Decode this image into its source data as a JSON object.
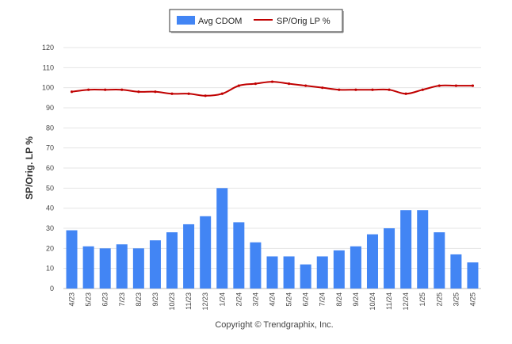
{
  "chart_data": {
    "type": "bar",
    "categories": [
      "4/23",
      "5/23",
      "6/23",
      "7/23",
      "8/23",
      "9/23",
      "10/23",
      "11/23",
      "12/23",
      "1/24",
      "2/24",
      "3/24",
      "4/24",
      "5/24",
      "6/24",
      "7/24",
      "8/24",
      "9/24",
      "10/24",
      "11/24",
      "12/24",
      "1/25",
      "2/25",
      "3/25",
      "4/25"
    ],
    "series": [
      {
        "name": "Avg CDOM",
        "type": "bar",
        "color": "#4285f4",
        "values": [
          29,
          21,
          20,
          22,
          20,
          24,
          28,
          32,
          36,
          50,
          33,
          23,
          16,
          16,
          12,
          16,
          19,
          21,
          27,
          30,
          39,
          39,
          28,
          17,
          13
        ]
      },
      {
        "name": "SP/Orig LP %",
        "type": "line",
        "color": "#c00000",
        "values": [
          98,
          99,
          99,
          99,
          98,
          98,
          97,
          97,
          96,
          97,
          101,
          102,
          103,
          102,
          101,
          100,
          99,
          99,
          99,
          99,
          97,
          99,
          101,
          101,
          101
        ]
      }
    ],
    "ylabel": "SP/Orig. LP %",
    "xlabel": "",
    "ylim": [
      0,
      120
    ],
    "yticks": [
      0,
      10,
      20,
      30,
      40,
      50,
      60,
      70,
      80,
      90,
      100,
      110,
      120
    ],
    "grid": true,
    "legend_position": "top-center"
  },
  "footer": {
    "copyright": "Copyright © Trendgraphix, Inc."
  }
}
